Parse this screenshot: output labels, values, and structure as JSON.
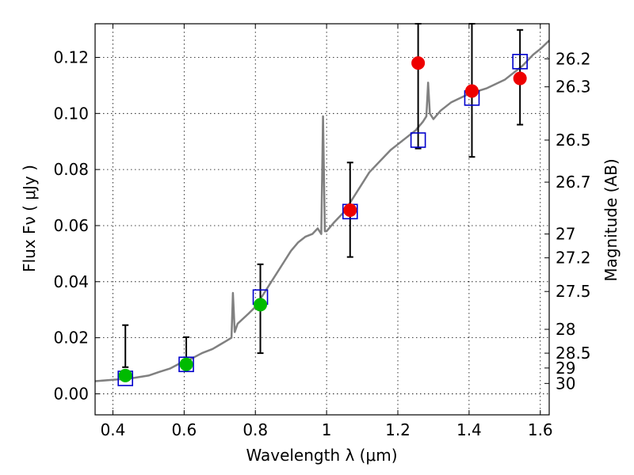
{
  "chart_data": {
    "type": "scatter",
    "xlabel": "Wavelength  λ (μm)",
    "ylabel": "Flux  Fν  ( μJy )",
    "ylabel_right": "Magnitude (AB)",
    "xlim": [
      0.35,
      1.625
    ],
    "ylim": [
      -0.0075,
      0.132
    ],
    "grid": true,
    "x_ticks": [
      0.4,
      0.6,
      0.8,
      1.0,
      1.2,
      1.4,
      1.6
    ],
    "x_tick_labels": [
      "0.4",
      "0.6",
      "0.8",
      "1",
      "1.2",
      "1.4",
      "1.6"
    ],
    "y_ticks": [
      0.0,
      0.02,
      0.04,
      0.06,
      0.08,
      0.1,
      0.12
    ],
    "y_tick_labels": [
      "0.00",
      "0.02",
      "0.04",
      "0.06",
      "0.08",
      "0.10",
      "0.12"
    ],
    "right_ticks": [
      {
        "flux": 0.1195,
        "label": "26.2"
      },
      {
        "flux": 0.1095,
        "label": "26.3"
      },
      {
        "flux": 0.0905,
        "label": "26.5"
      },
      {
        "flux": 0.0755,
        "label": "26.7"
      },
      {
        "flux": 0.057,
        "label": "27"
      },
      {
        "flux": 0.0485,
        "label": "27.2"
      },
      {
        "flux": 0.0365,
        "label": "27.5"
      },
      {
        "flux": 0.023,
        "label": "28"
      },
      {
        "flux": 0.0145,
        "label": "28.5"
      },
      {
        "flux": 0.0092,
        "label": "29"
      },
      {
        "flux": 0.0037,
        "label": "30"
      }
    ],
    "series": [
      {
        "name": "model spectrum",
        "kind": "line",
        "color": "#808080",
        "x": [
          0.35,
          0.4,
          0.45,
          0.5,
          0.53,
          0.56,
          0.59,
          0.62,
          0.65,
          0.68,
          0.7,
          0.72,
          0.733,
          0.737,
          0.742,
          0.75,
          0.78,
          0.8,
          0.82,
          0.84,
          0.86,
          0.88,
          0.9,
          0.92,
          0.94,
          0.96,
          0.975,
          0.985,
          0.99,
          0.995,
          1.0,
          1.02,
          1.05,
          1.08,
          1.1,
          1.12,
          1.15,
          1.18,
          1.2,
          1.22,
          1.25,
          1.27,
          1.28,
          1.285,
          1.29,
          1.3,
          1.32,
          1.35,
          1.4,
          1.45,
          1.5,
          1.55,
          1.58,
          1.6,
          1.625
        ],
        "y": [
          0.0045,
          0.005,
          0.0055,
          0.0065,
          0.0078,
          0.009,
          0.011,
          0.0125,
          0.0145,
          0.016,
          0.0175,
          0.019,
          0.02,
          0.036,
          0.022,
          0.025,
          0.0285,
          0.031,
          0.035,
          0.039,
          0.043,
          0.047,
          0.051,
          0.054,
          0.056,
          0.057,
          0.059,
          0.057,
          0.099,
          0.058,
          0.058,
          0.061,
          0.065,
          0.071,
          0.075,
          0.079,
          0.083,
          0.087,
          0.089,
          0.091,
          0.094,
          0.097,
          0.099,
          0.111,
          0.1,
          0.098,
          0.101,
          0.104,
          0.107,
          0.109,
          0.112,
          0.117,
          0.121,
          0.123,
          0.126
        ]
      },
      {
        "name": "model photometry",
        "kind": "open-square",
        "color": "#0000cc",
        "x": [
          0.435,
          0.606,
          0.814,
          1.066,
          1.257,
          1.408,
          1.543
        ],
        "y": [
          0.0055,
          0.0105,
          0.0345,
          0.065,
          0.0905,
          0.1055,
          0.1185
        ]
      },
      {
        "name": "observed (green)",
        "kind": "filled-circle",
        "color": "#00bb00",
        "x": [
          0.435,
          0.606,
          0.814
        ],
        "y": [
          0.0065,
          0.0105,
          0.0318
        ],
        "err_low": [
          0.0095,
          0.0095,
          0.0145
        ],
        "err_high": [
          0.0245,
          0.0202,
          0.0462
        ]
      },
      {
        "name": "observed (red)",
        "kind": "filled-circle",
        "color": "#ee0000",
        "x": [
          1.066,
          1.257,
          1.408,
          1.543
        ],
        "y": [
          0.0655,
          0.118,
          0.108,
          0.1125
        ],
        "err_low": [
          0.0488,
          0.0875,
          0.0845,
          0.096
        ],
        "err_high": [
          0.0825,
          0.132,
          0.132,
          0.1298
        ]
      }
    ]
  }
}
